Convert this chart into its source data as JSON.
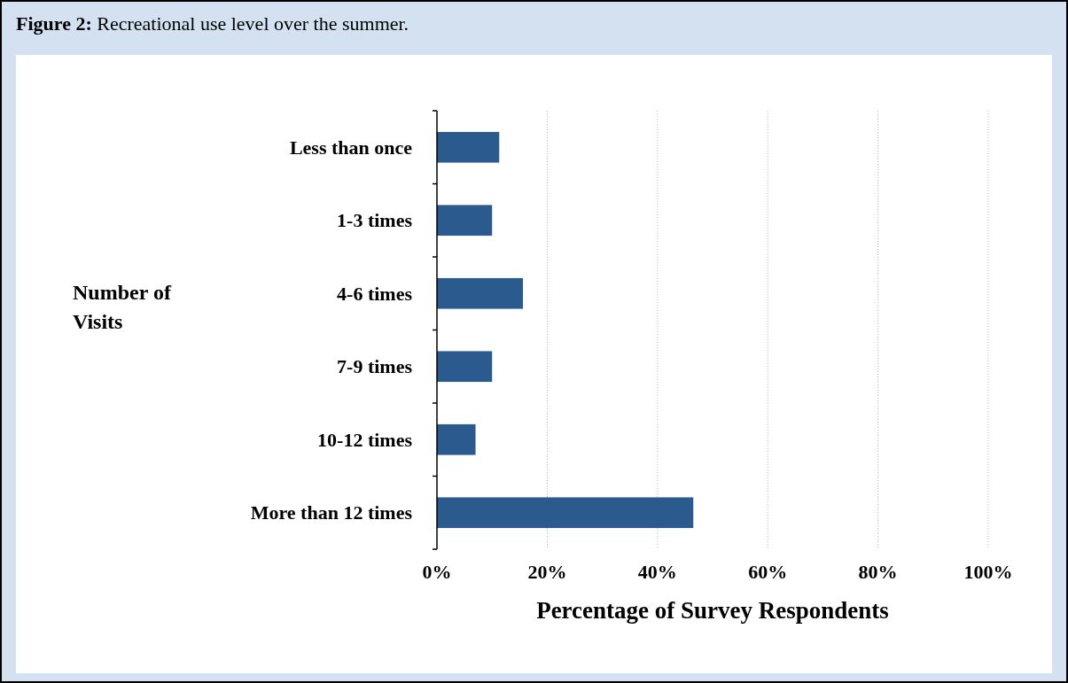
{
  "chart_data": {
    "type": "bar",
    "orientation": "horizontal",
    "title": "Figure 2: Recreational use level over the summer.",
    "ylabel": "Number of Visits",
    "xlabel": "Percentage of Survey Respondents",
    "categories": [
      "Less than once",
      "1-3 times",
      "4-6 times",
      "7-9 times",
      "10-12 times",
      "More than 12 times"
    ],
    "values": [
      11.3,
      10,
      15.6,
      10,
      7,
      46.5
    ],
    "color": "#2b5a8e",
    "xlim": [
      0,
      100
    ],
    "xticks": [
      {
        "value": 0,
        "label": "0%"
      },
      {
        "value": 20,
        "label": "20%"
      },
      {
        "value": 40,
        "label": "40%"
      },
      {
        "value": 60,
        "label": "60%"
      },
      {
        "value": 80,
        "label": "80%"
      },
      {
        "value": 100,
        "label": "100%"
      }
    ],
    "grid": "x"
  }
}
